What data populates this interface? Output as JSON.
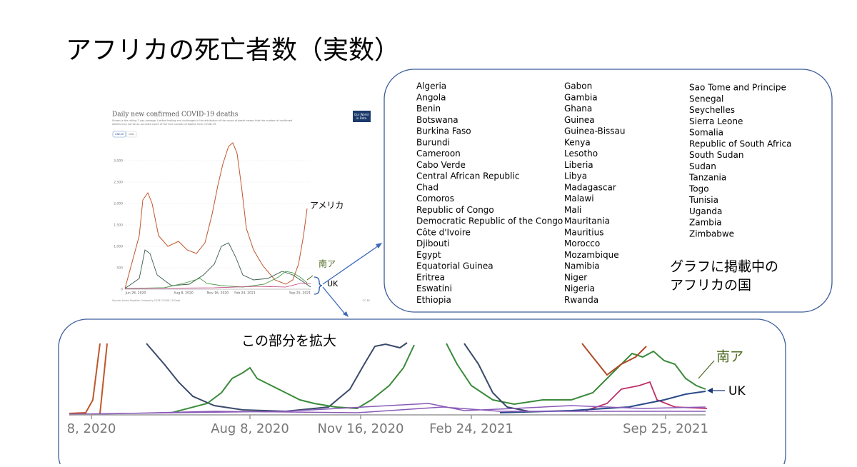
{
  "title": "アフリカの死亡者数（実数）",
  "mini_chart": {
    "title": "Daily new confirmed COVID-19 deaths",
    "subtitle": [
      "Shown is the rolling 7-day average. Limited testing and challenges in the attribution of the cause of death means that the number of confirmed",
      "deaths may not be an accurate count of the true number of deaths from COVID-19."
    ],
    "logo": [
      "Our World",
      "in Data"
    ],
    "buttons": [
      "LINEAR",
      "LOG"
    ],
    "y_ticks": [
      "3,000",
      "2,500",
      "2,000",
      "1,500",
      "1,000",
      "500",
      "0"
    ],
    "x_ticks": [
      "Jun 28, 2020",
      "Aug 8, 2020",
      "Nov 16, 2020",
      "Feb 24, 2021",
      "Sep 25, 2021"
    ],
    "source": "Source: Johns Hopkins University CSSE COVID-19 Data",
    "license": "CC BY"
  },
  "annotations": {
    "usa": "アメリカ",
    "south_africa": "南ア",
    "uk": "UK"
  },
  "countries": {
    "column_1": [
      "Algeria",
      "Angola",
      "Benin",
      "Botswana",
      "Burkina Faso",
      "Burundi",
      "Cameroon",
      "Cabo Verde",
      "Central African Republic",
      "Chad",
      "Comoros",
      "Republic of Congo",
      "Democratic Republic of the Congo",
      "Côte d'Ivoire",
      "Djibouti",
      "Egypt",
      "Equatorial Guinea",
      "Eritrea",
      "Eswatini",
      "Ethiopia"
    ],
    "column_2": [
      "Gabon",
      "Gambia",
      "Ghana",
      "Guinea",
      "Guinea-Bissau",
      "Kenya",
      "Lesotho",
      "Liberia",
      "Libya",
      "Madagascar",
      "Malawi",
      "Mali",
      "Mauritania",
      "Mauritius",
      "Morocco",
      "Mozambique",
      "Namibia",
      "Niger",
      "Nigeria",
      "Rwanda"
    ],
    "column_3": [
      "Sao Tome and Principe",
      "Senegal",
      "Seychelles",
      "Sierra Leone",
      "Somalia",
      "Republic of South Africa",
      "South Sudan",
      "Sudan",
      "Tanzania",
      "Togo",
      "Tunisia",
      "Uganda",
      "Zambia",
      "Zimbabwe"
    ]
  },
  "caption": [
    "グラフに掲載中の",
    "アフリカの国"
  ],
  "zoom": {
    "label": "この部分を拡大",
    "x_ticks": [
      "8, 2020",
      "Aug 8, 2020",
      "Nov 16, 2020",
      "Feb 24, 2021",
      "Sep 25, 2021"
    ],
    "south_africa": "南ア",
    "uk": "UK"
  }
}
